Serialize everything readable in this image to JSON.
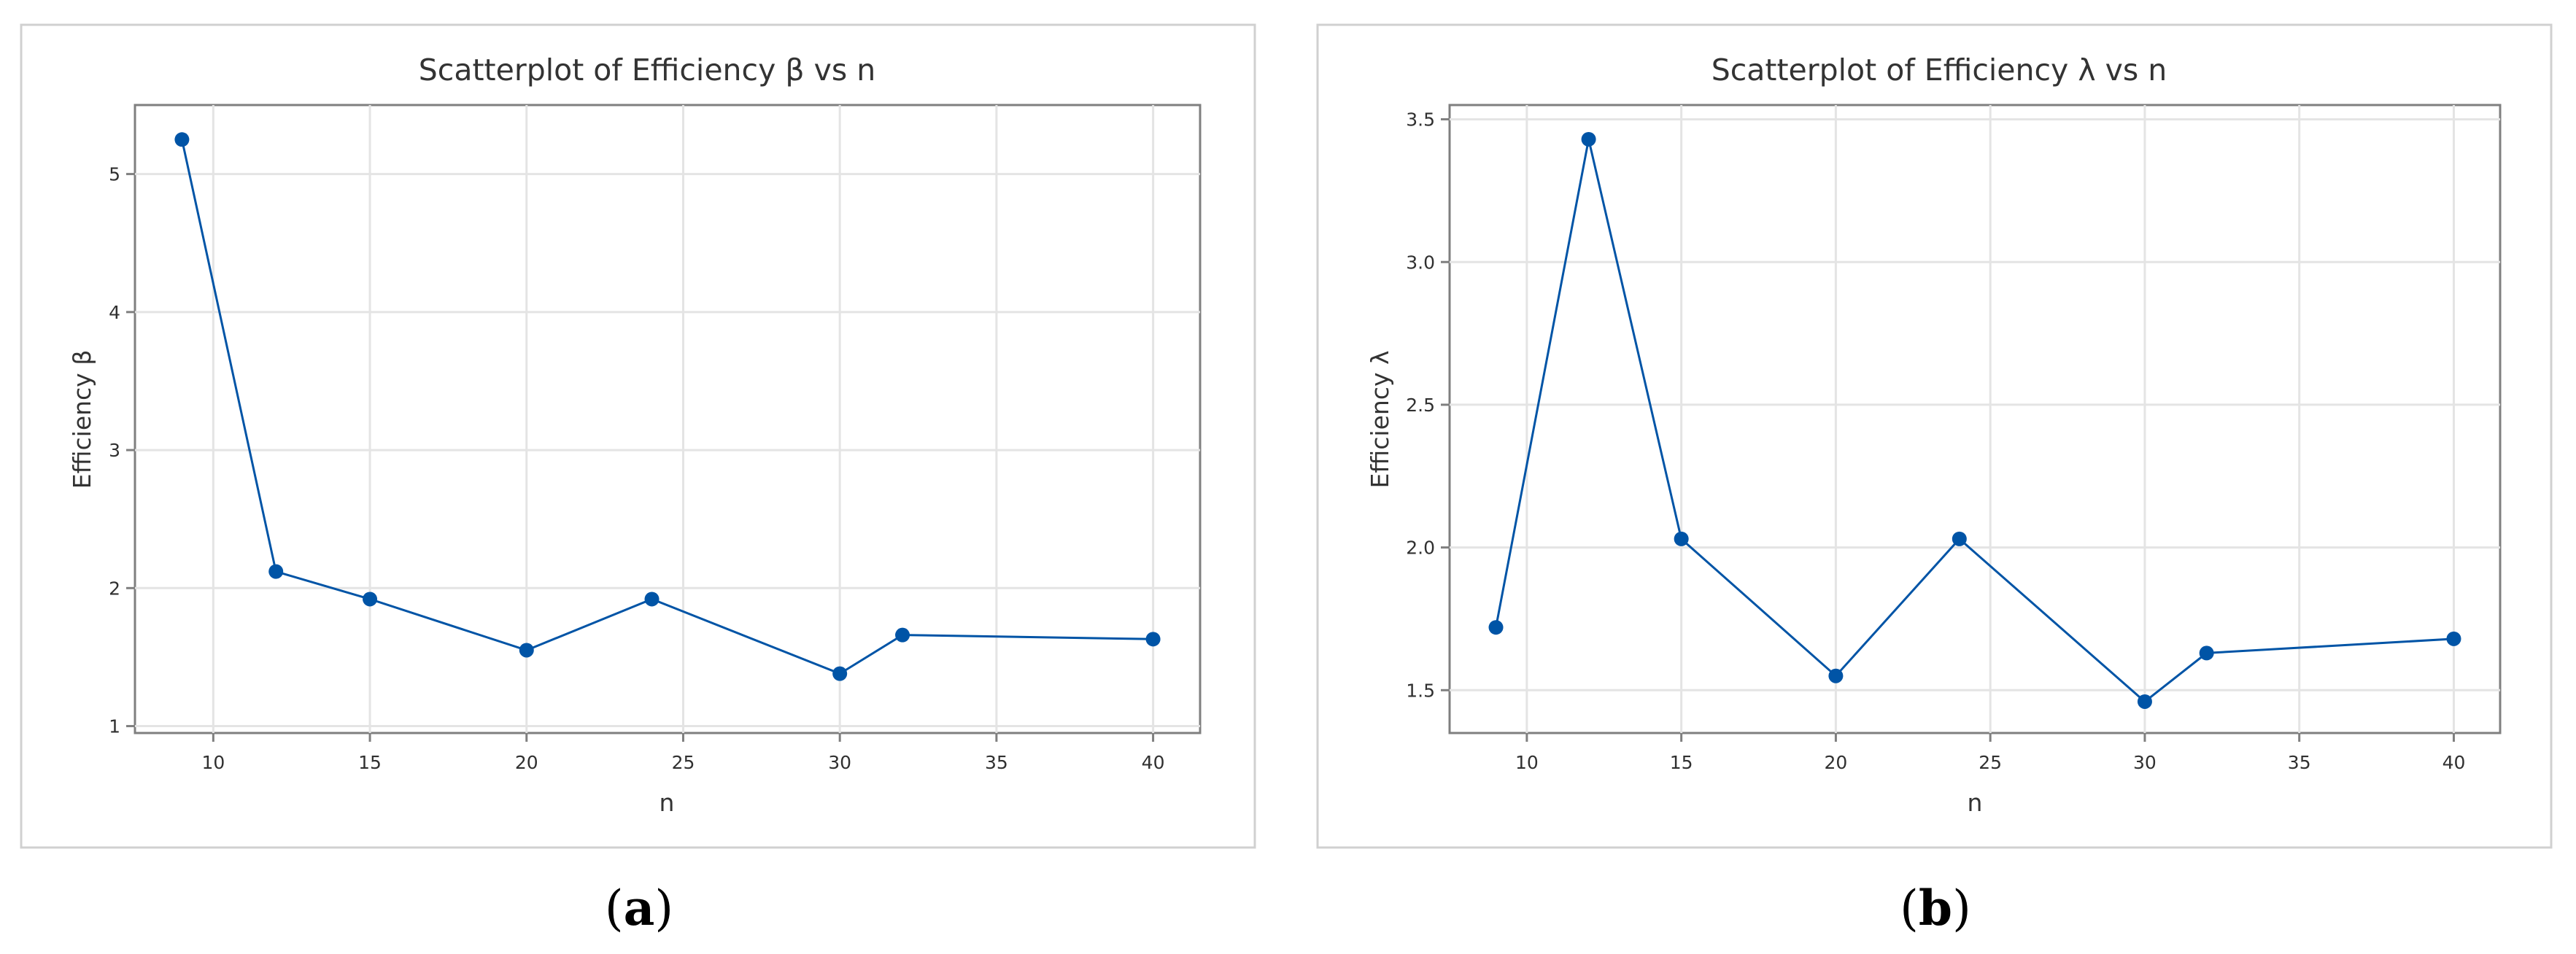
{
  "chart_data": [
    {
      "type": "line",
      "panel_label": "a",
      "title": "Scatterplot of Efficiency β vs n",
      "xlabel": "n",
      "ylabel": "Efficiency β",
      "xlim": [
        7.5,
        41.5
      ],
      "ylim": [
        0.95,
        5.5
      ],
      "xticks": [
        10,
        15,
        20,
        25,
        30,
        35,
        40
      ],
      "yticks": [
        1,
        2,
        3,
        4,
        5
      ],
      "ytick_labels": [
        "1",
        "2",
        "3",
        "4",
        "5"
      ],
      "grid": true,
      "markers": true,
      "color": "#0054a6",
      "series": [
        {
          "x": [
            9,
            12,
            15,
            20,
            24,
            30,
            32,
            40
          ],
          "values": [
            5.25,
            2.12,
            1.92,
            1.55,
            1.92,
            1.38,
            1.66,
            1.63
          ]
        }
      ]
    },
    {
      "type": "line",
      "panel_label": "b",
      "title": "Scatterplot of Efficiency λ vs n",
      "xlabel": "n",
      "ylabel": "Efficiency λ",
      "xlim": [
        7.5,
        41.5
      ],
      "ylim": [
        1.35,
        3.55
      ],
      "xticks": [
        10,
        15,
        20,
        25,
        30,
        35,
        40
      ],
      "yticks": [
        1.5,
        2.0,
        2.5,
        3.0,
        3.5
      ],
      "ytick_labels": [
        "1.5",
        "2.0",
        "2.5",
        "3.0",
        "3.5"
      ],
      "grid": true,
      "markers": true,
      "color": "#0054a6",
      "series": [
        {
          "x": [
            9,
            12,
            15,
            20,
            24,
            30,
            32,
            40
          ],
          "values": [
            1.72,
            3.43,
            2.03,
            1.55,
            2.03,
            1.46,
            1.63,
            1.68
          ]
        }
      ]
    }
  ]
}
